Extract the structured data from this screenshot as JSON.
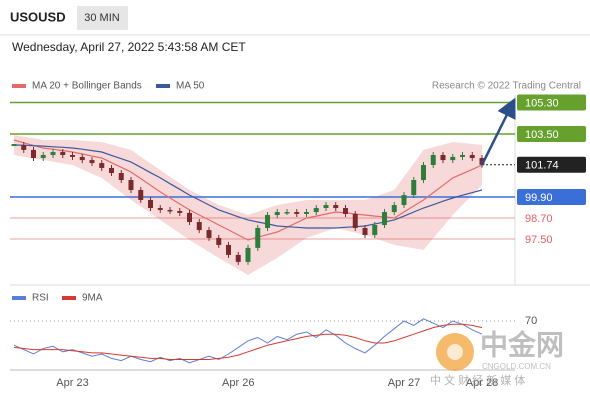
{
  "chart_data": [
    {
      "type": "candlestick",
      "title": "USOUSD",
      "timeframe": "30 MIN",
      "subtitle": "Wednesday, April 27, 2022 5:43:58 AM CET",
      "source": "Research © 2022 Trading Central",
      "categories": [
        null,
        null,
        null,
        null,
        null,
        null,
        "Apr 23",
        null,
        null,
        null,
        null,
        null,
        null,
        null,
        null,
        null,
        null,
        null,
        null,
        null,
        null,
        null,
        null,
        "Apr 26",
        null,
        null,
        null,
        null,
        null,
        null,
        null,
        null,
        null,
        null,
        null,
        null,
        null,
        null,
        null,
        null,
        "Apr 27",
        null,
        null,
        null,
        null,
        null,
        null,
        null,
        "Apr 28"
      ],
      "close": [
        102.87,
        102.59,
        102.13,
        102.3,
        102.47,
        102.3,
        102.19,
        102.01,
        101.84,
        101.56,
        101.27,
        100.87,
        100.3,
        99.73,
        99.27,
        99.16,
        99.1,
        98.99,
        98.47,
        98.01,
        97.56,
        97.16,
        96.59,
        96.19,
        96.99,
        98.13,
        98.87,
        99.04,
        99.04,
        98.93,
        99.04,
        99.27,
        99.44,
        99.27,
        98.93,
        98.13,
        97.73,
        98.3,
        99.04,
        99.44,
        100.01,
        100.87,
        101.73,
        102.3,
        102.01,
        102.19,
        102.3,
        102.13,
        101.74
      ],
      "up_color": "#2f7d3a",
      "down_color": "#7a2a2a",
      "series": [
        {
          "name": "MA 20 + Bollinger Bands",
          "color": "#e46a6a",
          "values": [
            103.16,
            103.0,
            102.85,
            102.7,
            102.63,
            102.55,
            102.47,
            102.36,
            102.24,
            102.13,
            101.86,
            101.6,
            101.33,
            100.95,
            100.57,
            100.19,
            99.84,
            99.5,
            99.16,
            98.87,
            98.59,
            98.3,
            98.02,
            97.73,
            97.44,
            97.6,
            97.75,
            97.9,
            98.17,
            98.43,
            98.7,
            98.81,
            98.93,
            99.04,
            98.99,
            98.93,
            98.87,
            98.81,
            98.76,
            98.7,
            99.04,
            99.39,
            99.73,
            100.15,
            100.57,
            100.99,
            101.23,
            101.48,
            101.73
          ]
        },
        {
          "name": "MA 50",
          "color": "#3a5a9c",
          "values": [
            102.87,
            102.86,
            102.83,
            102.81,
            102.77,
            102.74,
            102.7,
            102.63,
            102.55,
            102.47,
            102.28,
            102.09,
            101.9,
            101.6,
            101.29,
            100.99,
            100.66,
            100.34,
            100.01,
            99.73,
            99.44,
            99.16,
            98.97,
            98.77,
            98.59,
            98.47,
            98.36,
            98.24,
            98.2,
            98.17,
            98.13,
            98.13,
            98.13,
            98.13,
            98.17,
            98.2,
            98.24,
            98.36,
            98.47,
            98.59,
            98.81,
            99.04,
            99.27,
            99.46,
            99.66,
            99.84,
            100.0,
            100.15,
            100.3
          ]
        }
      ],
      "bands": {
        "color": "#f6d2d2",
        "upper": [
          103.44,
          103.35,
          103.26,
          103.16,
          103.16,
          103.16,
          103.16,
          103.12,
          103.08,
          103.04,
          102.89,
          102.74,
          102.59,
          102.2,
          101.82,
          101.44,
          101.06,
          100.68,
          100.3,
          100.02,
          99.73,
          99.44,
          99.26,
          99.06,
          98.87,
          99.06,
          99.26,
          99.44,
          99.54,
          99.63,
          99.73,
          99.73,
          99.73,
          99.73,
          99.73,
          99.73,
          99.73,
          99.92,
          100.11,
          100.3,
          101.06,
          101.82,
          102.59,
          102.74,
          102.89,
          103.04,
          102.99,
          102.93,
          102.87
        ],
        "lower": [
          102.3,
          102.2,
          102.11,
          102.02,
          101.92,
          101.82,
          101.73,
          101.48,
          101.23,
          100.99,
          100.57,
          100.15,
          99.73,
          99.35,
          98.97,
          98.59,
          98.2,
          97.83,
          97.44,
          97.1,
          96.76,
          96.42,
          96.09,
          95.77,
          95.44,
          95.77,
          96.09,
          96.42,
          96.8,
          97.18,
          97.56,
          97.75,
          97.94,
          98.13,
          98.0,
          97.86,
          97.73,
          97.54,
          97.35,
          97.16,
          97.06,
          96.97,
          96.87,
          97.54,
          98.2,
          98.87,
          99.44,
          100.01,
          100.59
        ]
      },
      "levels": [
        {
          "value": 105.3,
          "label": "105.30",
          "color": "#66a12e",
          "boxed": true,
          "dotted": false
        },
        {
          "value": 103.5,
          "label": "103.50",
          "color": "#66a12e",
          "boxed": true,
          "dotted": false
        },
        {
          "value": 101.74,
          "label": "101.74",
          "color": "#222222",
          "boxed": true,
          "dotted": true
        },
        {
          "value": 99.9,
          "label": "99.90",
          "color": "#3b6fd8",
          "boxed": true,
          "dotted": false
        },
        {
          "value": 98.7,
          "label": "98.70",
          "color": "#e06060",
          "boxed": false,
          "dotted": false
        },
        {
          "value": 97.5,
          "label": "97.50",
          "color": "#e06060",
          "boxed": false,
          "dotted": false
        }
      ],
      "ylim": [
        94.87,
        105.73
      ]
    },
    {
      "type": "line",
      "series": [
        {
          "name": "RSI",
          "color": "#5b7fd8",
          "values": [
            48,
            44,
            40,
            45,
            47,
            42,
            44,
            41,
            38,
            40,
            36,
            34,
            38,
            35,
            33,
            37,
            34,
            36,
            32,
            35,
            38,
            35,
            40,
            46,
            52,
            55,
            50,
            56,
            53,
            58,
            60,
            55,
            62,
            57,
            50,
            45,
            41,
            48,
            56,
            63,
            70,
            66,
            72,
            68,
            64,
            70,
            67,
            62,
            58
          ]
        },
        {
          "name": "9MA",
          "color": "#d63a2f",
          "values": [
            46,
            45,
            44,
            44,
            44,
            44,
            43,
            42,
            41,
            41,
            40,
            39,
            38,
            37,
            36,
            36,
            35,
            35,
            35,
            35,
            35,
            36,
            37,
            39,
            42,
            45,
            48,
            50,
            52,
            54,
            56,
            57,
            58,
            58,
            57,
            55,
            52,
            50,
            50,
            52,
            55,
            58,
            61,
            64,
            66,
            67,
            67,
            66,
            64
          ]
        }
      ],
      "ylim": [
        20,
        80
      ],
      "yticks": [
        70
      ]
    }
  ],
  "watermark": {
    "name": "中金网",
    "site": "CNGOLD.COM.CN",
    "slogan": "中 文 财 经 新 媒 体"
  }
}
